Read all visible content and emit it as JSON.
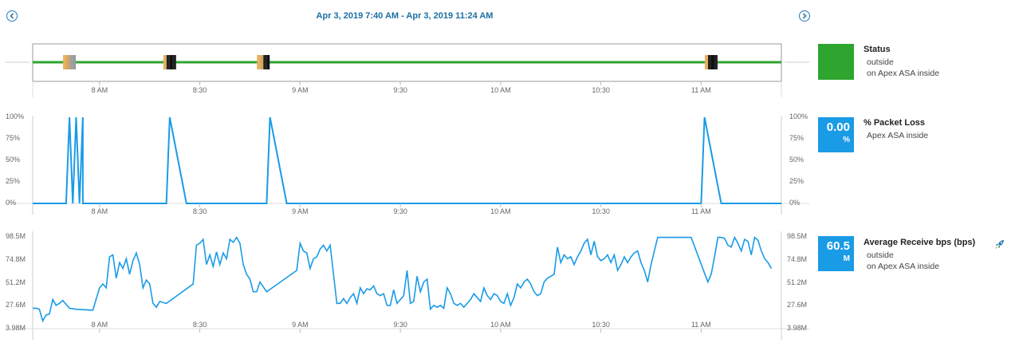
{
  "header": {
    "title": "Apr 3, 2019 7:40 AM - Apr 3, 2019 11:24 AM",
    "prev_icon": "chevron-left-icon",
    "next_icon": "chevron-right-icon"
  },
  "x_axis_ticks": [
    "8 AM",
    "8:30",
    "9 AM",
    "9:30",
    "10 AM",
    "10:30",
    "11 AM"
  ],
  "status": {
    "title": "Status",
    "line1": "outside",
    "line2": "on Apex ASA inside",
    "color": "#2ea52f"
  },
  "packet_loss": {
    "title": "% Packet Loss",
    "line1": "Apex ASA inside",
    "value": "0.00",
    "unit": "%",
    "y_ticks": [
      "100%",
      "75%",
      "50%",
      "25%",
      "0%"
    ]
  },
  "receive": {
    "title": "Average Receive bps (bps)",
    "line1": "outside",
    "line2": "on Apex ASA inside",
    "value": "60.5",
    "unit": "M",
    "y_ticks": [
      "98.5M",
      "74.8M",
      "51.2M",
      "27.6M",
      "3.98M"
    ],
    "icon": "rocket-icon"
  },
  "chart_data": [
    {
      "type": "line",
      "title": "Status",
      "x_range": [
        "07:40",
        "11:24"
      ],
      "series": [
        {
          "values": [
            1
          ]
        }
      ],
      "status_events": [
        {
          "time": "07:51",
          "colors": [
            "#e8b060",
            "#d9a45a",
            "#a0a0a0",
            "#9a9a9a"
          ]
        },
        {
          "time": "08:21",
          "colors": [
            "#e8b060",
            "#222222",
            "#111111",
            "#222222"
          ]
        },
        {
          "time": "08:49",
          "colors": [
            "#e8b060",
            "#d9a45a",
            "#222222",
            "#111111"
          ]
        },
        {
          "time": "11:03",
          "colors": [
            "#e8b060",
            "#222222",
            "#111111",
            "#222222"
          ]
        }
      ]
    },
    {
      "type": "line",
      "title": "% Packet Loss",
      "ylim": [
        0,
        100
      ],
      "points": [
        [
          "07:40",
          0
        ],
        [
          "07:50",
          0
        ],
        [
          "07:51",
          100
        ],
        [
          "07:52",
          0
        ],
        [
          "07:53",
          100
        ],
        [
          "07:54",
          0
        ],
        [
          "07:55",
          100
        ],
        [
          "07:55",
          0
        ],
        [
          "08:20",
          0
        ],
        [
          "08:21",
          100
        ],
        [
          "08:26",
          0
        ],
        [
          "08:50",
          0
        ],
        [
          "08:51",
          100
        ],
        [
          "08:56",
          0
        ],
        [
          "11:00",
          0
        ],
        [
          "11:01",
          100
        ],
        [
          "11:06",
          0
        ],
        [
          "11:24",
          0
        ]
      ]
    },
    {
      "type": "line",
      "title": "Average Receive bps (bps)",
      "ylim": [
        3.98,
        98.5
      ],
      "unit": "M",
      "points": [
        [
          "07:40",
          25
        ],
        [
          "07:41",
          25
        ],
        [
          "07:42",
          24
        ],
        [
          "07:43",
          12
        ],
        [
          "07:44",
          18
        ],
        [
          "07:45",
          19
        ],
        [
          "07:46",
          34
        ],
        [
          "07:47",
          28
        ],
        [
          "07:48",
          30
        ],
        [
          "07:49",
          33
        ],
        [
          "07:51",
          25
        ],
        [
          "07:53",
          24
        ],
        [
          "07:58",
          23
        ],
        [
          "08:00",
          46
        ],
        [
          "08:01",
          50
        ],
        [
          "08:02",
          46
        ],
        [
          "08:03",
          78
        ],
        [
          "08:04",
          80
        ],
        [
          "08:05",
          56
        ],
        [
          "08:06",
          72
        ],
        [
          "08:07",
          66
        ],
        [
          "08:08",
          76
        ],
        [
          "08:09",
          60
        ],
        [
          "08:10",
          74
        ],
        [
          "08:11",
          82
        ],
        [
          "08:12",
          70
        ],
        [
          "08:13",
          46
        ],
        [
          "08:14",
          54
        ],
        [
          "08:15",
          50
        ],
        [
          "08:16",
          30
        ],
        [
          "08:17",
          26
        ],
        [
          "08:18",
          32
        ],
        [
          "08:20",
          30
        ],
        [
          "08:28",
          50
        ],
        [
          "08:29",
          90
        ],
        [
          "08:30",
          92
        ],
        [
          "08:31",
          96
        ],
        [
          "08:32",
          70
        ],
        [
          "08:33",
          80
        ],
        [
          "08:34",
          68
        ],
        [
          "08:35",
          83
        ],
        [
          "08:36",
          70
        ],
        [
          "08:37",
          82
        ],
        [
          "08:38",
          76
        ],
        [
          "08:39",
          96
        ],
        [
          "08:40",
          93
        ],
        [
          "08:41",
          98
        ],
        [
          "08:42",
          92
        ],
        [
          "08:43",
          70
        ],
        [
          "08:44",
          60
        ],
        [
          "08:45",
          55
        ],
        [
          "08:46",
          42
        ],
        [
          "08:47",
          42
        ],
        [
          "08:48",
          52
        ],
        [
          "08:50",
          42
        ],
        [
          "08:59",
          64
        ],
        [
          "09:00",
          92
        ],
        [
          "09:01",
          84
        ],
        [
          "09:02",
          82
        ],
        [
          "09:03",
          66
        ],
        [
          "09:04",
          76
        ],
        [
          "09:05",
          78
        ],
        [
          "09:06",
          86
        ],
        [
          "09:07",
          90
        ],
        [
          "09:08",
          84
        ],
        [
          "09:09",
          90
        ],
        [
          "09:10",
          60
        ],
        [
          "09:11",
          30
        ],
        [
          "09:12",
          30
        ],
        [
          "09:13",
          35
        ],
        [
          "09:14",
          30
        ],
        [
          "09:15",
          36
        ],
        [
          "09:16",
          40
        ],
        [
          "09:17",
          30
        ],
        [
          "09:18",
          46
        ],
        [
          "09:19",
          40
        ],
        [
          "09:20",
          45
        ],
        [
          "09:21",
          44
        ],
        [
          "09:22",
          48
        ],
        [
          "09:23",
          40
        ],
        [
          "09:24",
          38
        ],
        [
          "09:25",
          40
        ],
        [
          "09:26",
          28
        ],
        [
          "09:27",
          28
        ],
        [
          "09:28",
          44
        ],
        [
          "09:29",
          30
        ],
        [
          "09:30",
          34
        ],
        [
          "09:31",
          38
        ],
        [
          "09:32",
          64
        ],
        [
          "09:33",
          30
        ],
        [
          "09:34",
          32
        ],
        [
          "09:35",
          58
        ],
        [
          "09:36",
          42
        ],
        [
          "09:37",
          52
        ],
        [
          "09:38",
          55
        ],
        [
          "09:39",
          24
        ],
        [
          "09:40",
          28
        ],
        [
          "09:41",
          26
        ],
        [
          "09:42",
          28
        ],
        [
          "09:43",
          25
        ],
        [
          "09:44",
          46
        ],
        [
          "09:45",
          40
        ],
        [
          "09:46",
          30
        ],
        [
          "09:47",
          28
        ],
        [
          "09:48",
          30
        ],
        [
          "09:49",
          26
        ],
        [
          "09:50",
          30
        ],
        [
          "09:51",
          34
        ],
        [
          "09:52",
          40
        ],
        [
          "09:53",
          36
        ],
        [
          "09:54",
          32
        ],
        [
          "09:55",
          46
        ],
        [
          "09:56",
          38
        ],
        [
          "09:57",
          34
        ],
        [
          "09:58",
          40
        ],
        [
          "09:59",
          38
        ],
        [
          "10:00",
          32
        ],
        [
          "10:01",
          30
        ],
        [
          "10:02",
          40
        ],
        [
          "10:03",
          28
        ],
        [
          "10:04",
          36
        ],
        [
          "10:05",
          50
        ],
        [
          "10:06",
          46
        ],
        [
          "10:07",
          52
        ],
        [
          "10:08",
          55
        ],
        [
          "10:09",
          50
        ],
        [
          "10:10",
          42
        ],
        [
          "10:11",
          38
        ],
        [
          "10:12",
          40
        ],
        [
          "10:13",
          52
        ],
        [
          "10:14",
          56
        ],
        [
          "10:15",
          58
        ],
        [
          "10:16",
          60
        ],
        [
          "10:17",
          88
        ],
        [
          "10:18",
          72
        ],
        [
          "10:19",
          80
        ],
        [
          "10:20",
          76
        ],
        [
          "10:21",
          78
        ],
        [
          "10:22",
          70
        ],
        [
          "10:23",
          78
        ],
        [
          "10:24",
          84
        ],
        [
          "10:25",
          92
        ],
        [
          "10:26",
          96
        ],
        [
          "10:27",
          80
        ],
        [
          "10:28",
          94
        ],
        [
          "10:29",
          78
        ],
        [
          "10:30",
          74
        ],
        [
          "10:31",
          76
        ],
        [
          "10:32",
          80
        ],
        [
          "10:33",
          72
        ],
        [
          "10:34",
          80
        ],
        [
          "10:35",
          64
        ],
        [
          "10:36",
          70
        ],
        [
          "10:37",
          78
        ],
        [
          "10:38",
          72
        ],
        [
          "10:39",
          78
        ],
        [
          "10:40",
          82
        ],
        [
          "10:41",
          84
        ],
        [
          "10:42",
          72
        ],
        [
          "10:43",
          64
        ],
        [
          "10:44",
          52
        ],
        [
          "10:45",
          70
        ],
        [
          "10:47",
          98
        ],
        [
          "10:56",
          98
        ],
        [
          "10:57",
          98
        ],
        [
          "11:02",
          52
        ],
        [
          "11:03",
          60
        ],
        [
          "11:04",
          78
        ],
        [
          "11:05",
          98
        ],
        [
          "11:06",
          98
        ],
        [
          "11:07",
          97
        ],
        [
          "11:08",
          90
        ],
        [
          "11:09",
          88
        ],
        [
          "11:10",
          98
        ],
        [
          "11:11",
          92
        ],
        [
          "11:12",
          84
        ],
        [
          "11:13",
          96
        ],
        [
          "11:14",
          94
        ],
        [
          "11:15",
          80
        ],
        [
          "11:16",
          98
        ],
        [
          "11:17",
          95
        ],
        [
          "11:18",
          84
        ],
        [
          "11:19",
          76
        ],
        [
          "11:20",
          72
        ],
        [
          "11:21",
          66
        ]
      ]
    }
  ]
}
